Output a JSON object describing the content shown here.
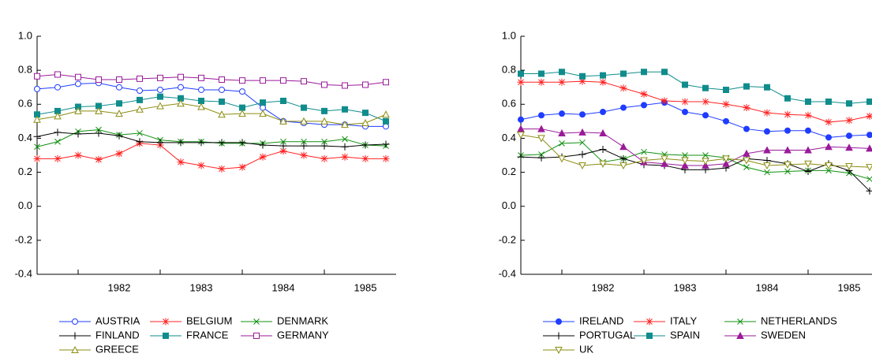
{
  "chart_data": [
    {
      "type": "line",
      "categories": [
        null,
        null,
        "1982",
        null,
        null,
        null,
        "1983",
        null,
        null,
        null,
        "1984",
        null,
        null,
        null,
        "1985",
        null,
        null,
        null
      ],
      "ylim": [
        -0.4,
        1.0
      ],
      "yticks": [
        {
          "value": -0.4,
          "label": "-0.4"
        },
        -0.2,
        {
          "value": 0,
          "label": "0.0"
        },
        0.2,
        0.4,
        0.6,
        0.8,
        {
          "value": 1.0,
          "label": "1.0"
        }
      ],
      "series": [
        {
          "name": "AUSTRIA",
          "color": "#1f3cff",
          "marker": "circle-open",
          "values": [
            0.69,
            0.7,
            0.72,
            0.725,
            0.7,
            0.68,
            0.685,
            0.7,
            0.685,
            0.685,
            0.675,
            0.58,
            0.5,
            0.49,
            0.48,
            0.48,
            0.47,
            0.47
          ]
        },
        {
          "name": "BELGIUM",
          "color": "#ff2020",
          "marker": "asterisk",
          "values": [
            0.28,
            0.28,
            0.3,
            0.275,
            0.31,
            0.37,
            0.36,
            0.26,
            0.24,
            0.22,
            0.23,
            0.29,
            0.325,
            0.3,
            0.28,
            0.29,
            0.28,
            0.28
          ]
        },
        {
          "name": "DENMARK",
          "color": "#109010",
          "marker": "x",
          "values": [
            0.35,
            0.38,
            0.44,
            0.45,
            0.42,
            0.43,
            0.39,
            0.38,
            0.38,
            0.37,
            0.37,
            0.37,
            0.38,
            0.38,
            0.38,
            0.395,
            0.36,
            0.355
          ]
        },
        {
          "name": "FINLAND",
          "color": "#000000",
          "marker": "plus",
          "values": [
            0.41,
            0.435,
            0.425,
            0.43,
            0.415,
            0.38,
            0.375,
            0.375,
            0.375,
            0.375,
            0.375,
            0.36,
            0.355,
            0.355,
            0.355,
            0.35,
            0.36,
            0.365
          ]
        },
        {
          "name": "FRANCE",
          "color": "#108c8c",
          "marker": "square",
          "values": [
            0.54,
            0.56,
            0.585,
            0.59,
            0.605,
            0.625,
            0.645,
            0.635,
            0.62,
            0.615,
            0.58,
            0.61,
            0.62,
            0.58,
            0.56,
            0.57,
            0.55,
            0.5
          ]
        },
        {
          "name": "GERMANY",
          "color": "#9a1a9a",
          "marker": "square-open",
          "values": [
            0.765,
            0.775,
            0.76,
            0.745,
            0.745,
            0.75,
            0.755,
            0.76,
            0.755,
            0.745,
            0.74,
            0.74,
            0.74,
            0.735,
            0.715,
            0.71,
            0.715,
            0.73
          ]
        },
        {
          "name": "GREECE",
          "color": "#8c8c10",
          "marker": "triangle-open",
          "values": [
            0.51,
            0.53,
            0.56,
            0.56,
            0.545,
            0.57,
            0.59,
            0.605,
            0.585,
            0.54,
            0.545,
            0.545,
            0.5,
            0.5,
            0.5,
            0.48,
            0.49,
            0.54
          ]
        }
      ]
    },
    {
      "type": "line",
      "categories": [
        null,
        null,
        "1982",
        null,
        null,
        null,
        "1983",
        null,
        null,
        null,
        "1984",
        null,
        null,
        null,
        "1985",
        null,
        null,
        null
      ],
      "ylim": [
        -0.4,
        1.0
      ],
      "yticks": [
        {
          "value": -0.4,
          "label": "-0.4"
        },
        -0.2,
        {
          "value": 0,
          "label": "0.0"
        },
        0.2,
        0.4,
        0.6,
        0.8,
        {
          "value": 1.0,
          "label": "1.0"
        }
      ],
      "series": [
        {
          "name": "IRELAND",
          "color": "#1f3cff",
          "marker": "circle",
          "values": [
            0.51,
            0.535,
            0.545,
            0.54,
            0.555,
            0.58,
            0.595,
            0.61,
            0.555,
            0.535,
            0.5,
            0.455,
            0.44,
            0.445,
            0.445,
            0.405,
            0.415,
            0.42
          ]
        },
        {
          "name": "ITALY",
          "color": "#ff2020",
          "marker": "asterisk",
          "values": [
            0.73,
            0.73,
            0.73,
            0.735,
            0.73,
            0.695,
            0.66,
            0.62,
            0.615,
            0.615,
            0.6,
            0.58,
            0.55,
            0.54,
            0.535,
            0.495,
            0.505,
            0.53
          ]
        },
        {
          "name": "NETHERLANDS",
          "color": "#109010",
          "marker": "x",
          "values": [
            0.3,
            0.305,
            0.37,
            0.375,
            0.26,
            0.28,
            0.32,
            0.305,
            0.3,
            0.3,
            0.285,
            0.23,
            0.2,
            0.205,
            0.21,
            0.21,
            0.195,
            0.16
          ]
        },
        {
          "name": "PORTUGAL",
          "color": "#000000",
          "marker": "plus",
          "values": [
            0.29,
            0.285,
            0.29,
            0.305,
            0.335,
            0.28,
            0.245,
            0.24,
            0.215,
            0.215,
            0.225,
            0.28,
            0.27,
            0.25,
            0.205,
            0.25,
            0.21,
            0.09
          ]
        },
        {
          "name": "SPAIN",
          "color": "#108c8c",
          "marker": "square",
          "values": [
            0.78,
            0.78,
            0.79,
            0.765,
            0.77,
            0.78,
            0.79,
            0.79,
            0.715,
            0.695,
            0.685,
            0.705,
            0.7,
            0.635,
            0.615,
            0.615,
            0.605,
            0.615
          ]
        },
        {
          "name": "SWEDEN",
          "color": "#9a1a9a",
          "marker": "triangle",
          "values": [
            0.455,
            0.455,
            0.43,
            0.435,
            0.43,
            0.35,
            0.26,
            0.25,
            0.24,
            0.24,
            0.25,
            0.31,
            0.33,
            0.33,
            0.33,
            0.35,
            0.345,
            0.34
          ]
        },
        {
          "name": "UK",
          "color": "#8c8c10",
          "marker": "triangle-down-open",
          "values": [
            0.42,
            0.4,
            0.28,
            0.24,
            0.25,
            0.24,
            0.27,
            0.28,
            0.27,
            0.265,
            0.28,
            0.27,
            0.24,
            0.245,
            0.25,
            0.24,
            0.235,
            0.23
          ]
        }
      ]
    }
  ]
}
